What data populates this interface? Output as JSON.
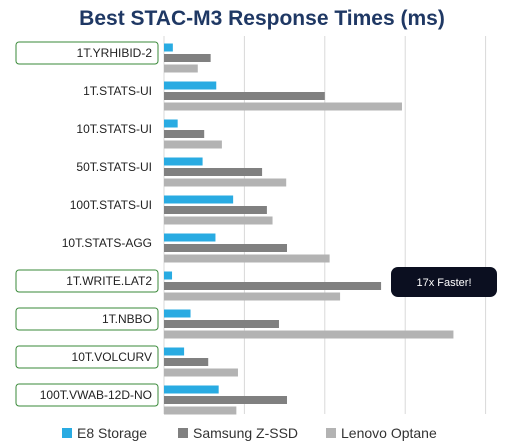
{
  "chart_data": {
    "type": "bar",
    "orientation": "horizontal",
    "title": "Best STAC-M3 Response Times (ms)",
    "categories": [
      "1T.YRHIBID-2",
      "1T.STATS-UI",
      "10T.STATS-UI",
      "50T.STATS-UI",
      "100T.STATS-UI",
      "10T.STATS-AGG",
      "1T.WRITE.LAT2",
      "1T.NBBO",
      "10T.VOLCURV",
      "100T.VWAB-12D-NO"
    ],
    "highlighted_categories": [
      "1T.YRHIBID-2",
      "1T.WRITE.LAT2",
      "1T.NBBO",
      "10T.VOLCURV",
      "100T.VWAB-12D-NO"
    ],
    "series": [
      {
        "name": "E8 Storage",
        "color": "#29abe2",
        "values": [
          11,
          65,
          17,
          48,
          86,
          64,
          10,
          33,
          25,
          68
        ]
      },
      {
        "name": "Samsung Z-SSD",
        "color": "#808080",
        "values": [
          58,
          200,
          50,
          122,
          128,
          153,
          270,
          143,
          55,
          153
        ]
      },
      {
        "name": "Lenovo Optane",
        "color": "#b3b3b3",
        "values": [
          42,
          296,
          72,
          152,
          135,
          206,
          219,
          360,
          92,
          90
        ]
      }
    ],
    "xlim": [
      0,
      400
    ],
    "grid": true,
    "legend_position": "bottom",
    "annotation": {
      "text": "17x Faster!",
      "category": "1T.WRITE.LAT2"
    }
  }
}
